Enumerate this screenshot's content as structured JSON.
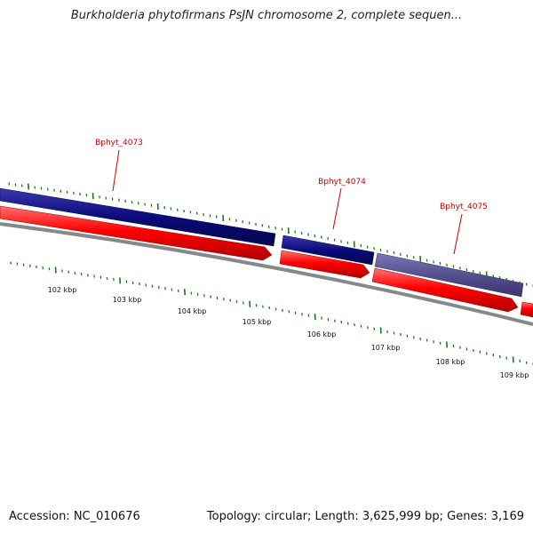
{
  "title": "Burkholderia phytofirmans PsJN chromosome 2, complete sequen...",
  "footer": {
    "accession": "Accession: NC_010676",
    "summary": "Topology: circular; Length: 3,625,999 bp; Genes: 3,169"
  },
  "colors": {
    "forward_gene": "#0a0a7a",
    "forward_gene_selected": "#55508f",
    "cds_arrow": "#ff0000",
    "backbone": "#888888",
    "ticks": "#1a7a1a",
    "gene_labels": "#cc0000"
  },
  "scale": {
    "tick_labels": [
      "102 kbp",
      "103 kbp",
      "104 kbp",
      "105 kbp",
      "106 kbp",
      "107 kbp",
      "108 kbp",
      "109 kbp"
    ]
  },
  "genes": [
    {
      "label": "Bphyt_4073"
    },
    {
      "label": "Bphyt_4074"
    },
    {
      "label": "Bphyt_4075"
    }
  ]
}
